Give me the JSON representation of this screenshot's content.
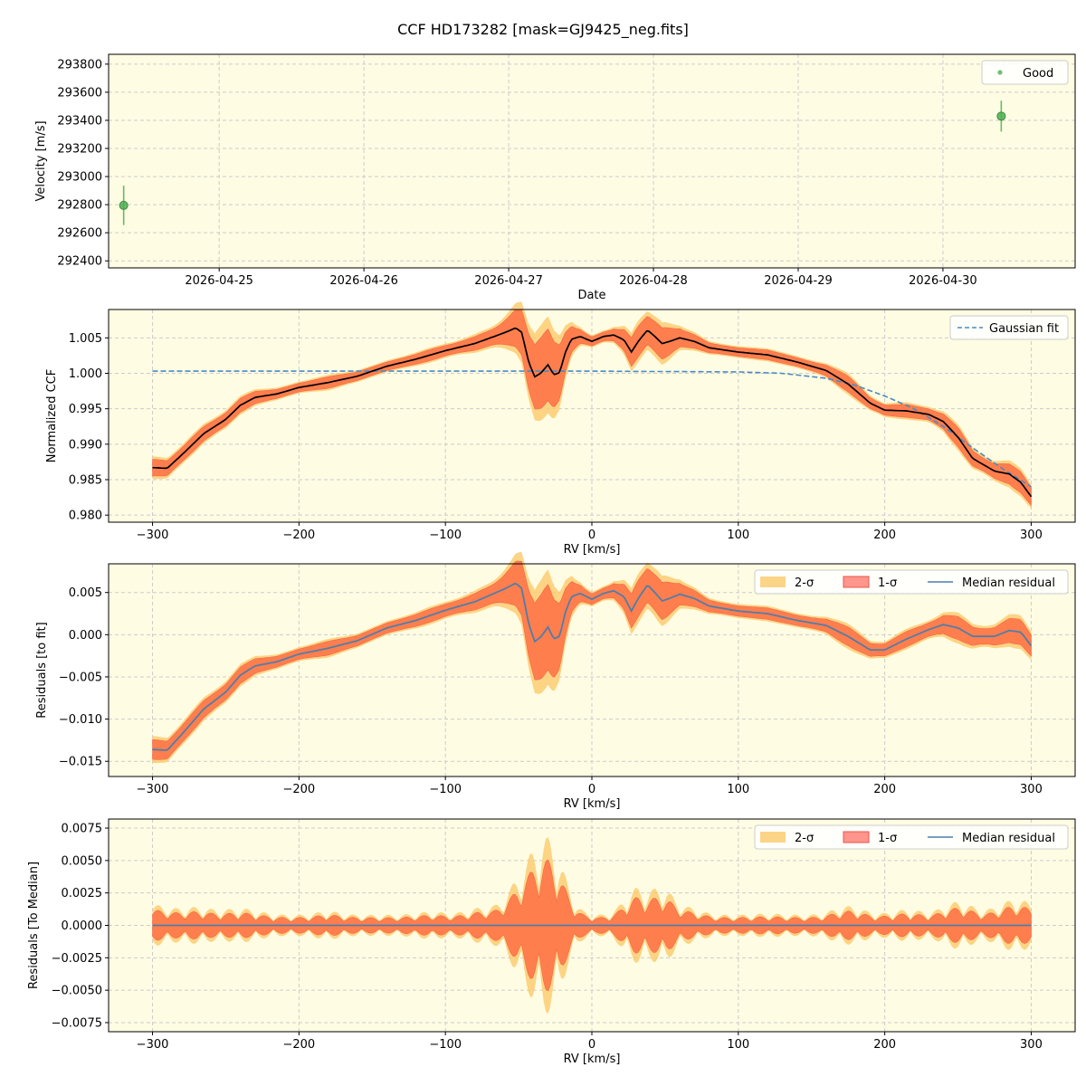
{
  "title": "CCF HD173282 [mask=GJ9425_neg.fits]",
  "colors": {
    "panel_bg": "#fefce3",
    "good": "#4caf50",
    "fit": "#4a8bbf",
    "ccf": "#000000",
    "band2": "#fbc96a",
    "band1": "#ff6f45",
    "median": "#4f7ea8",
    "grid": "#cccccc"
  },
  "chart_data": [
    {
      "type": "scatter",
      "xlabel": "Date",
      "ylabel": "Velocity [m/s]",
      "x_ticks": [
        "2026-04-25",
        "2026-04-26",
        "2026-04-27",
        "2026-04-28",
        "2026-04-29",
        "2026-04-30"
      ],
      "xlim": [
        "2026-04-24 05:40",
        "2026-04-30 21:55"
      ],
      "ylim": [
        292350,
        293870
      ],
      "y_ticks": [
        292400,
        292600,
        292800,
        293000,
        293200,
        293400,
        293600,
        293800
      ],
      "legend": {
        "position": "top-right",
        "entries": [
          "Good"
        ]
      },
      "series": [
        {
          "name": "Good",
          "points": [
            {
              "date": "2026-04-24 08:10",
              "y": 292795,
              "err": 140
            },
            {
              "date": "2026-04-30 09:40",
              "y": 293430,
              "err": 110
            }
          ]
        }
      ],
      "grid": true
    },
    {
      "type": "line",
      "xlabel": "RV [km/s]",
      "ylabel": "Normalized CCF",
      "xlim": [
        -330,
        330
      ],
      "ylim": [
        0.979,
        1.009
      ],
      "x_ticks": [
        -300,
        -200,
        -100,
        0,
        100,
        200,
        300
      ],
      "y_ticks": [
        0.98,
        0.985,
        0.99,
        0.995,
        1.0,
        1.005
      ],
      "y_tick_labels": [
        "0.980",
        "0.985",
        "0.990",
        "0.995",
        "1.000",
        "1.005"
      ],
      "legend": {
        "position": "top-right",
        "entries": [
          "Gaussian fit"
        ]
      },
      "series": [
        {
          "name": "Gaussian fit",
          "style": "dashed",
          "points": [
            [
              -300,
              1.0003
            ],
            [
              -100,
              1.0003
            ],
            [
              0,
              1.0003
            ],
            [
              100,
              1.0002
            ],
            [
              130,
              1.0
            ],
            [
              160,
              0.9993
            ],
            [
              180,
              0.9983
            ],
            [
              200,
              0.9968
            ],
            [
              220,
              0.995
            ],
            [
              240,
              0.9925
            ],
            [
              260,
              0.9895
            ],
            [
              280,
              0.9866
            ],
            [
              300,
              0.984
            ]
          ]
        },
        {
          "name": "CCF",
          "points": [
            [
              -300,
              0.9867
            ],
            [
              -290,
              0.9866
            ],
            [
              -280,
              0.9885
            ],
            [
              -265,
              0.9915
            ],
            [
              -250,
              0.9935
            ],
            [
              -240,
              0.9955
            ],
            [
              -230,
              0.9966
            ],
            [
              -215,
              0.9971
            ],
            [
              -200,
              0.998
            ],
            [
              -180,
              0.9987
            ],
            [
              -160,
              0.9996
            ],
            [
              -140,
              1.001
            ],
            [
              -120,
              1.002
            ],
            [
              -100,
              1.0032
            ],
            [
              -80,
              1.0042
            ],
            [
              -60,
              1.0057
            ],
            [
              -52,
              1.0064
            ],
            [
              -48,
              1.0058
            ],
            [
              -43,
              1.0015
            ],
            [
              -39,
              0.9995
            ],
            [
              -35,
              1.0
            ],
            [
              -30,
              1.0012
            ],
            [
              -26,
              0.9998
            ],
            [
              -22,
              1.0001
            ],
            [
              -18,
              1.003
            ],
            [
              -14,
              1.0048
            ],
            [
              -8,
              1.0052
            ],
            [
              0,
              1.0045
            ],
            [
              8,
              1.0052
            ],
            [
              15,
              1.0054
            ],
            [
              22,
              1.0047
            ],
            [
              27,
              1.003
            ],
            [
              32,
              1.0046
            ],
            [
              38,
              1.0061
            ],
            [
              43,
              1.0052
            ],
            [
              48,
              1.0042
            ],
            [
              53,
              1.0045
            ],
            [
              60,
              1.005
            ],
            [
              70,
              1.0045
            ],
            [
              80,
              1.0036
            ],
            [
              100,
              1.003
            ],
            [
              120,
              1.0026
            ],
            [
              140,
              1.0016
            ],
            [
              160,
              1.0004
            ],
            [
              175,
              0.9985
            ],
            [
              190,
              0.9958
            ],
            [
              200,
              0.9948
            ],
            [
              215,
              0.9947
            ],
            [
              230,
              0.9942
            ],
            [
              240,
              0.9932
            ],
            [
              250,
              0.991
            ],
            [
              260,
              0.988
            ],
            [
              275,
              0.9862
            ],
            [
              285,
              0.9858
            ],
            [
              293,
              0.9846
            ],
            [
              300,
              0.9826
            ]
          ]
        }
      ],
      "grid": true
    },
    {
      "type": "area",
      "xlabel": "RV [km/s]",
      "ylabel": "Residuals [to fit]",
      "xlim": [
        -330,
        330
      ],
      "ylim": [
        -0.0168,
        0.0084
      ],
      "x_ticks": [
        -300,
        -200,
        -100,
        0,
        100,
        200,
        300
      ],
      "y_ticks": [
        -0.015,
        -0.01,
        -0.005,
        0.0,
        0.005
      ],
      "y_tick_labels": [
        "−0.015",
        "−0.010",
        "−0.005",
        "0.000",
        "0.005"
      ],
      "legend": {
        "position": "top-right",
        "entries": [
          "2-σ",
          "1-σ",
          "Median residual"
        ]
      },
      "series": [
        {
          "name": "Median residual",
          "points": [
            [
              -300,
              -0.0136
            ],
            [
              -290,
              -0.0137
            ],
            [
              -280,
              -0.0118
            ],
            [
              -265,
              -0.0088
            ],
            [
              -250,
              -0.0068
            ],
            [
              -240,
              -0.0048
            ],
            [
              -230,
              -0.0037
            ],
            [
              -215,
              -0.0032
            ],
            [
              -200,
              -0.0023
            ],
            [
              -180,
              -0.0016
            ],
            [
              -160,
              -0.0007
            ],
            [
              -140,
              0.0008
            ],
            [
              -120,
              0.0017
            ],
            [
              -100,
              0.0029
            ],
            [
              -80,
              0.0039
            ],
            [
              -60,
              0.0054
            ],
            [
              -52,
              0.0061
            ],
            [
              -48,
              0.0055
            ],
            [
              -43,
              0.0012
            ],
            [
              -39,
              -0.0008
            ],
            [
              -35,
              -0.0003
            ],
            [
              -30,
              0.0009
            ],
            [
              -26,
              -0.0005
            ],
            [
              -22,
              -0.0002
            ],
            [
              -18,
              0.0027
            ],
            [
              -14,
              0.0045
            ],
            [
              -8,
              0.0049
            ],
            [
              0,
              0.0042
            ],
            [
              8,
              0.0049
            ],
            [
              15,
              0.0052
            ],
            [
              22,
              0.0045
            ],
            [
              27,
              0.0028
            ],
            [
              32,
              0.0044
            ],
            [
              38,
              0.0059
            ],
            [
              43,
              0.005
            ],
            [
              48,
              0.004
            ],
            [
              53,
              0.0043
            ],
            [
              60,
              0.0048
            ],
            [
              70,
              0.0043
            ],
            [
              80,
              0.0034
            ],
            [
              100,
              0.0028
            ],
            [
              120,
              0.0025
            ],
            [
              140,
              0.0017
            ],
            [
              160,
              0.0011
            ],
            [
              175,
              -0.0002
            ],
            [
              190,
              -0.0018
            ],
            [
              200,
              -0.0018
            ],
            [
              215,
              -0.0005
            ],
            [
              230,
              0.0006
            ],
            [
              240,
              0.0012
            ],
            [
              250,
              0.0008
            ],
            [
              260,
              -0.0002
            ],
            [
              275,
              -0.0002
            ],
            [
              285,
              0.0005
            ],
            [
              293,
              0.0003
            ],
            [
              300,
              -0.0013
            ]
          ]
        }
      ],
      "grid": true
    },
    {
      "type": "area",
      "xlabel": "RV [km/s]",
      "ylabel": "Residuals [To Median]",
      "xlim": [
        -330,
        330
      ],
      "ylim": [
        -0.0082,
        0.0082
      ],
      "x_ticks": [
        -300,
        -200,
        -100,
        0,
        100,
        200,
        300
      ],
      "y_ticks": [
        -0.0075,
        -0.005,
        -0.0025,
        0.0,
        0.0025,
        0.005,
        0.0075
      ],
      "y_tick_labels": [
        "−0.0075",
        "−0.0050",
        "−0.0025",
        "0.0000",
        "0.0025",
        "0.0050",
        "0.0075"
      ],
      "legend": {
        "position": "top-right",
        "entries": [
          "2-σ",
          "1-σ",
          "Median residual"
        ]
      },
      "series": [
        {
          "name": "Median residual",
          "points": [
            [
              -300,
              0.0
            ],
            [
              300,
              0.0
            ]
          ]
        }
      ],
      "grid": true
    }
  ]
}
